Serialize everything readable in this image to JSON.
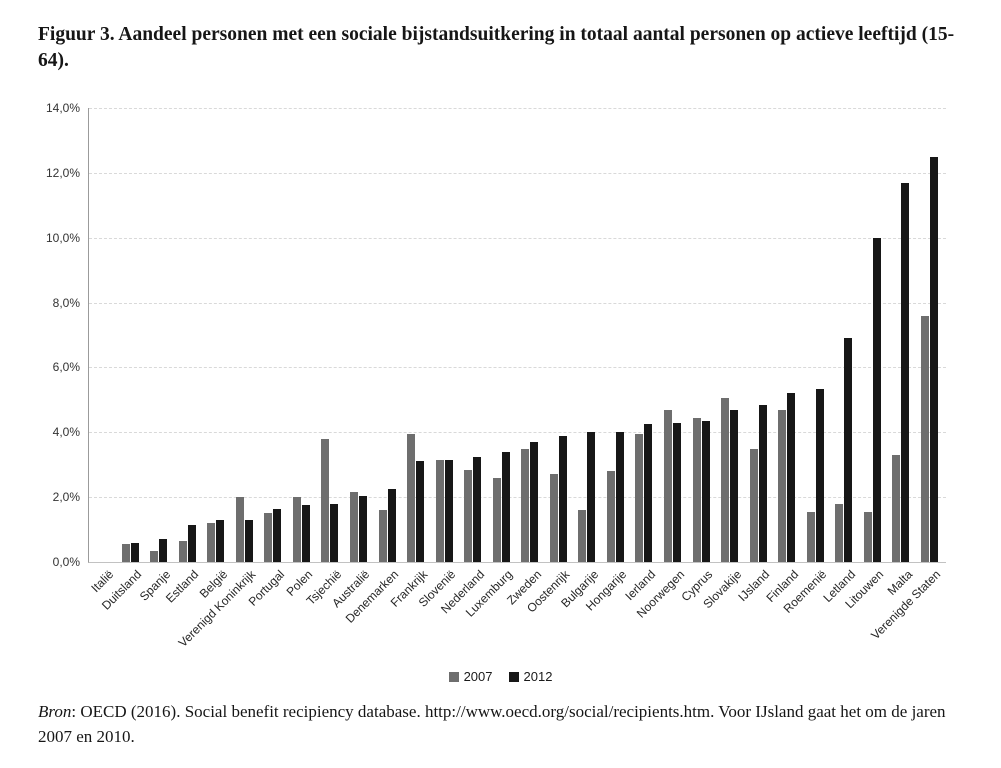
{
  "title": "Figuur 3. Aandeel personen met een sociale bijstandsuitkering in totaal aantal personen op actieve leeftijd (15-64).",
  "legend": [
    {
      "label": "2007",
      "color": "#6e6e6e"
    },
    {
      "label": "2012",
      "color": "#171717"
    }
  ],
  "source": {
    "prefix_italic": "Bron",
    "text": ": OECD (2016). Social benefit recipiency database. http://www.oecd.org/social/recipients.htm. Voor IJsland gaat het om de jaren 2007 en 2010."
  },
  "chart_data": {
    "type": "bar",
    "title": "Figuur 3. Aandeel personen met een sociale bijstandsuitkering in totaal aantal personen op actieve leeftijd (15-64).",
    "categories": [
      "Italië",
      "Duitsland",
      "Spanje",
      "Estland",
      "België",
      "Verenigd Koninkrijk",
      "Portugal",
      "Polen",
      "Tsjechië",
      "Australië",
      "Denemarken",
      "Frankrijk",
      "Slovenië",
      "Nederland",
      "Luxemburg",
      "Zweden",
      "Oostenrijk",
      "Bulgarije",
      "Hongarije",
      "Ierland",
      "Noorwegen",
      "Cyprus",
      "Slovakije",
      "IJsland",
      "Finland",
      "Roemenië",
      "Letland",
      "Litouwen",
      "Malta",
      "Verenigde Staten"
    ],
    "series": [
      {
        "name": "2007",
        "color": "#6e6e6e",
        "values": [
          0,
          0.55,
          0.35,
          0.65,
          1.2,
          2.0,
          1.5,
          2.0,
          3.8,
          2.15,
          1.6,
          3.95,
          3.15,
          2.85,
          2.6,
          3.5,
          2.7,
          1.6,
          2.8,
          3.95,
          4.7,
          4.45,
          5.05,
          3.5,
          4.7,
          1.55,
          1.8,
          1.55,
          3.3,
          7.6
        ]
      },
      {
        "name": "2012",
        "color": "#171717",
        "values": [
          0,
          0.6,
          0.7,
          1.15,
          1.3,
          1.3,
          1.65,
          1.75,
          1.8,
          2.05,
          2.25,
          3.1,
          3.15,
          3.25,
          3.4,
          3.7,
          3.9,
          4.0,
          4.0,
          4.25,
          4.3,
          4.35,
          4.7,
          4.85,
          5.2,
          5.35,
          6.9,
          10.0,
          11.7,
          12.5
        ]
      }
    ],
    "xlabel": "",
    "ylabel": "",
    "ylim": [
      0,
      14
    ],
    "ytick_step": 2,
    "ytick_labels": [
      "0,0%",
      "2,0%",
      "4,0%",
      "6,0%",
      "8,0%",
      "10,0%",
      "12,0%",
      "14,0%"
    ],
    "grid": "horizontal-dashed",
    "legend_position": "bottom-center"
  }
}
